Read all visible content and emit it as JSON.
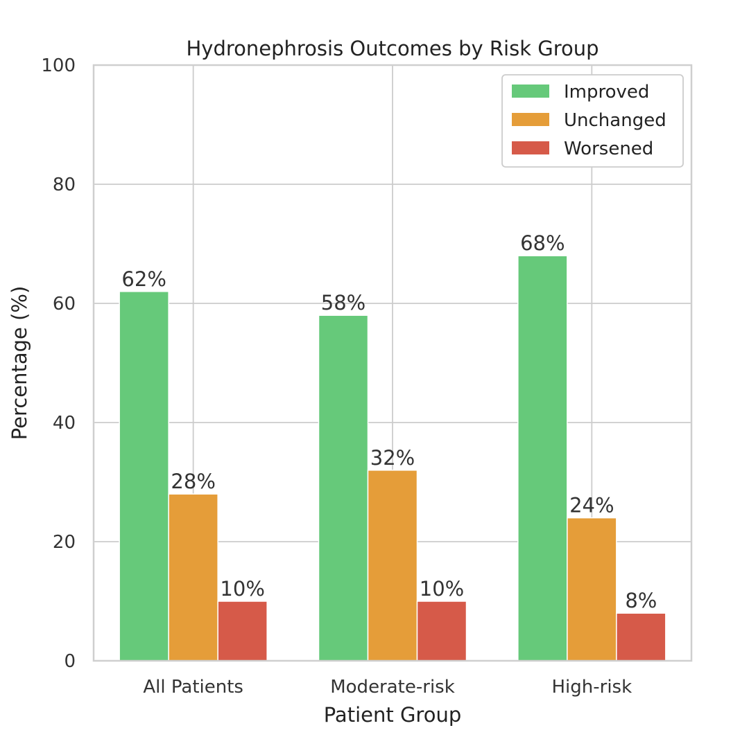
{
  "chart_data": {
    "type": "bar",
    "title": "Hydronephrosis Outcomes by Risk Group",
    "xlabel": "Patient Group",
    "ylabel": "Percentage (%)",
    "categories": [
      "All Patients",
      "Moderate-risk",
      "High-risk"
    ],
    "series": [
      {
        "name": "Improved",
        "values": [
          62,
          58,
          68
        ],
        "color": "#66c97a"
      },
      {
        "name": "Unchanged",
        "values": [
          28,
          32,
          24
        ],
        "color": "#e59d39"
      },
      {
        "name": "Worsened",
        "values": [
          10,
          10,
          8
        ],
        "color": "#d65a49"
      }
    ],
    "data_labels": [
      [
        "62%",
        "58%",
        "68%"
      ],
      [
        "28%",
        "32%",
        "24%"
      ],
      [
        "10%",
        "10%",
        "8%"
      ]
    ],
    "ylim": [
      0,
      100
    ],
    "yticks": [
      0,
      20,
      40,
      60,
      80,
      100
    ],
    "grid": true,
    "legend_position": "top-right"
  }
}
